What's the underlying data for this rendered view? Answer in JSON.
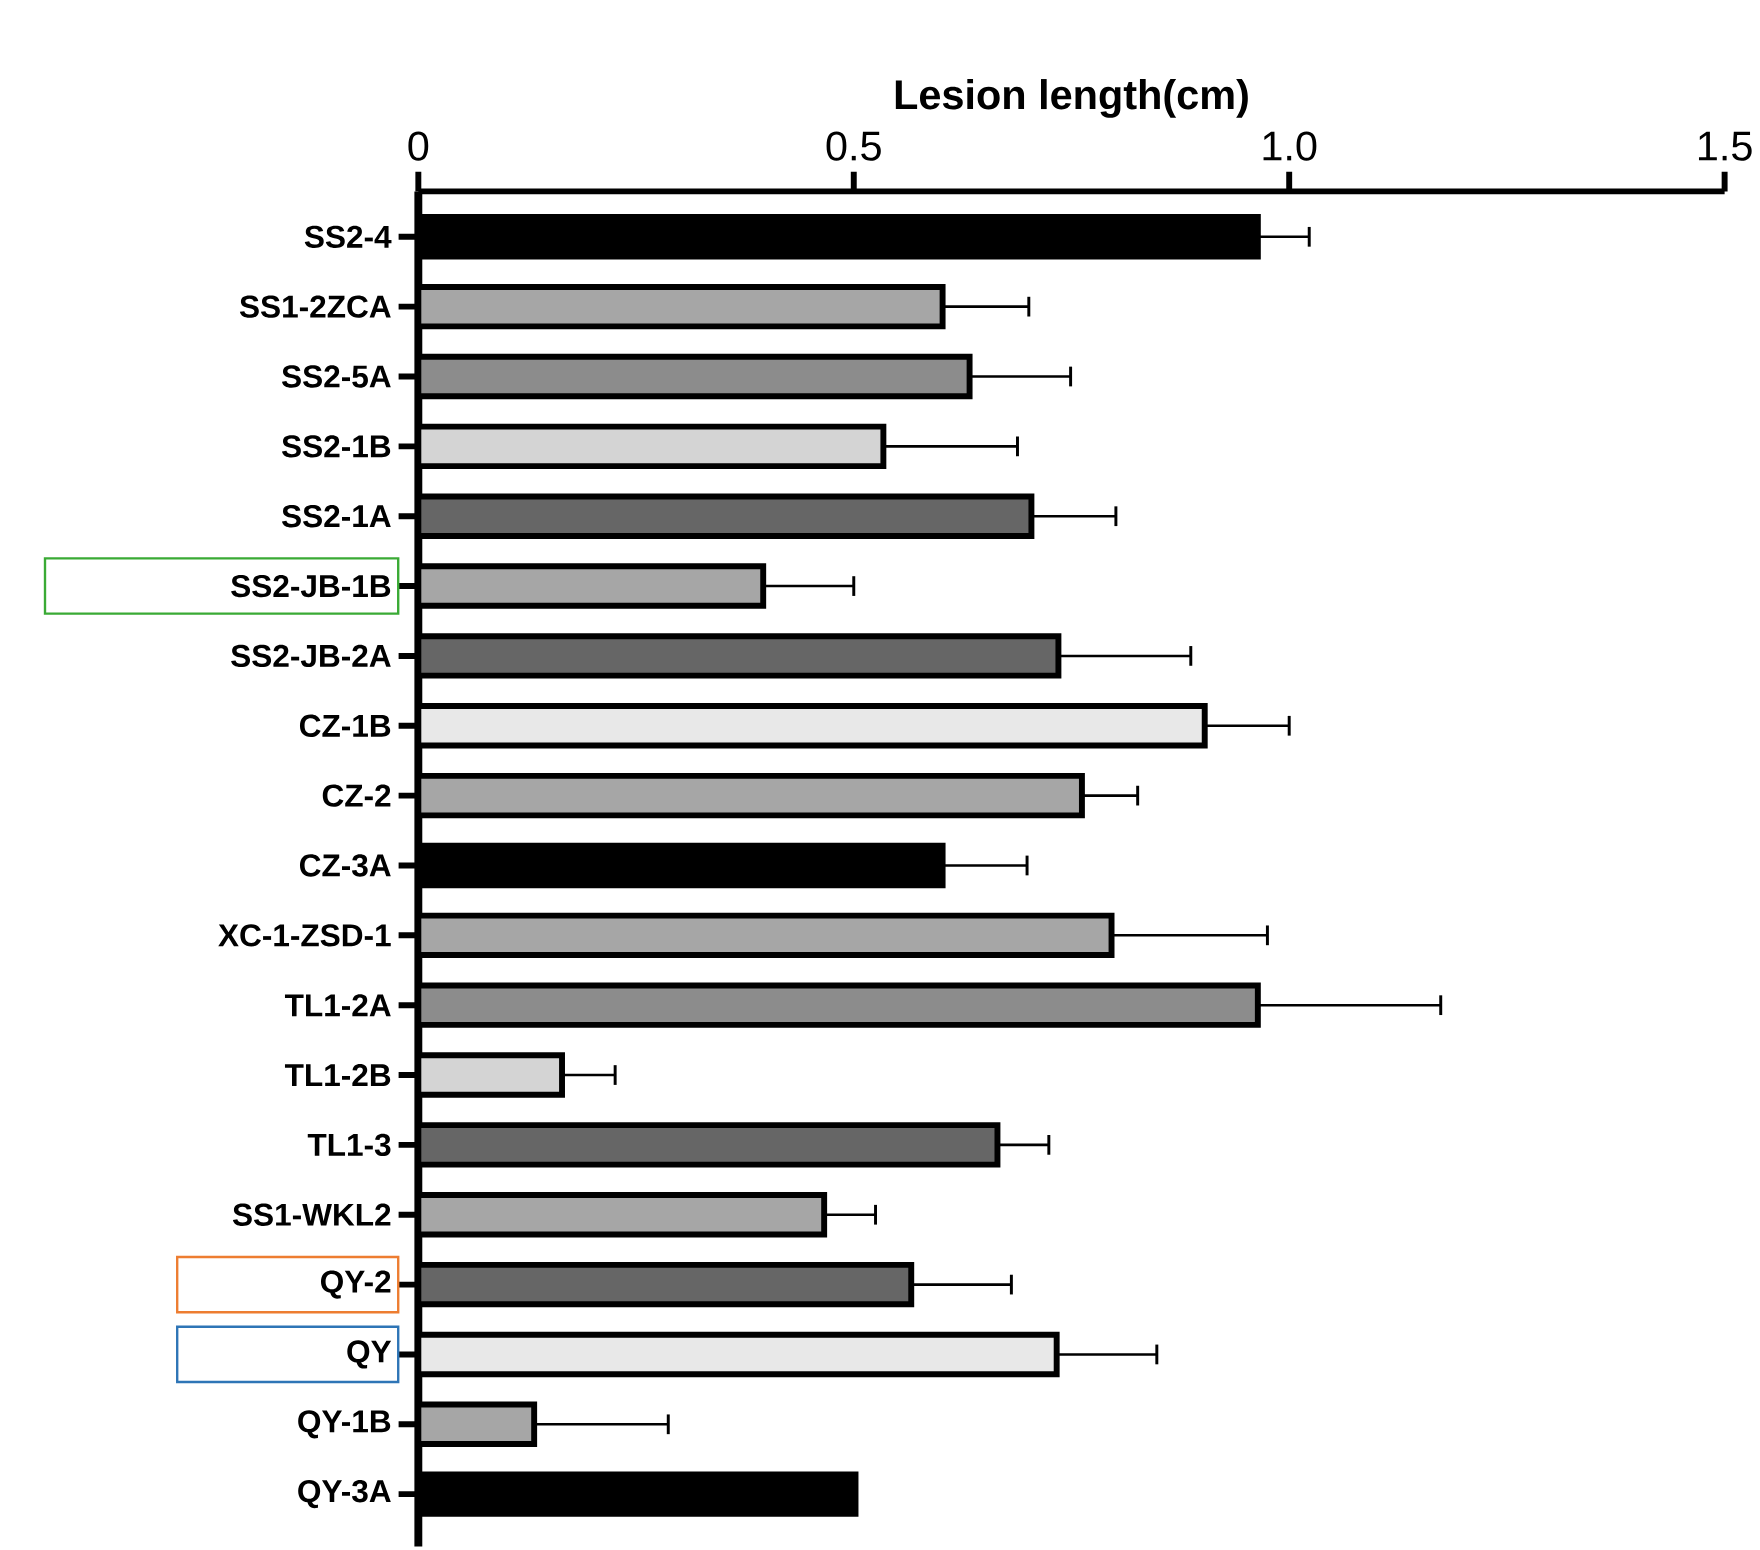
{
  "chart_data": {
    "type": "bar",
    "orientation": "horizontal",
    "xlabel": "Lesion length(cm)",
    "categories": [
      "SS2-4",
      "SS1-2ZCA",
      "SS2-5A",
      "SS2-1B",
      "SS2-1A",
      "SS2-JB-1B",
      "SS2-JB-2A",
      "CZ-1B",
      "CZ-2",
      "CZ-3A",
      "XC-1-ZSD-1",
      "TL1-2A",
      "TL1-2B",
      "TL1-3",
      "SS1-WKL2",
      "QY-2",
      "QY",
      "QY-1B",
      "QY-3A"
    ],
    "values": [
      0.964,
      0.602,
      0.633,
      0.534,
      0.704,
      0.396,
      0.735,
      0.903,
      0.762,
      0.602,
      0.796,
      0.964,
      0.165,
      0.665,
      0.466,
      0.566,
      0.733,
      0.133,
      0.502
    ],
    "errors": [
      [
        0.964,
        1.023
      ],
      [
        0.602,
        0.701
      ],
      [
        0.633,
        0.749
      ],
      [
        0.534,
        0.688
      ],
      [
        0.704,
        0.801
      ],
      [
        0.396,
        0.5
      ],
      [
        0.735,
        0.887
      ],
      [
        0.903,
        1.0
      ],
      [
        0.762,
        0.826
      ],
      [
        0.602,
        0.699
      ],
      [
        0.796,
        0.975
      ],
      [
        0.964,
        1.174
      ],
      [
        0.165,
        0.226
      ],
      [
        0.665,
        0.724
      ],
      [
        0.466,
        0.525
      ],
      [
        0.566,
        0.681
      ],
      [
        0.733,
        0.848
      ],
      [
        0.133,
        0.287
      ],
      null
    ],
    "colors": [
      "#000000",
      "#a6a6a6",
      "#8c8c8c",
      "#d4d4d4",
      "#666666",
      "#a6a6a6",
      "#666666",
      "#e8e8e8",
      "#a6a6a6",
      "#000000",
      "#a6a6a6",
      "#8c8c8c",
      "#d4d4d4",
      "#666666",
      "#a6a6a6",
      "#666666",
      "#e8e8e8",
      "#a6a6a6",
      "#000000"
    ],
    "xlim": [
      0,
      1.5
    ],
    "xticks": [
      0,
      0.5,
      {
        "value": 1.0,
        "label": "1.0"
      },
      1.5
    ]
  }
}
